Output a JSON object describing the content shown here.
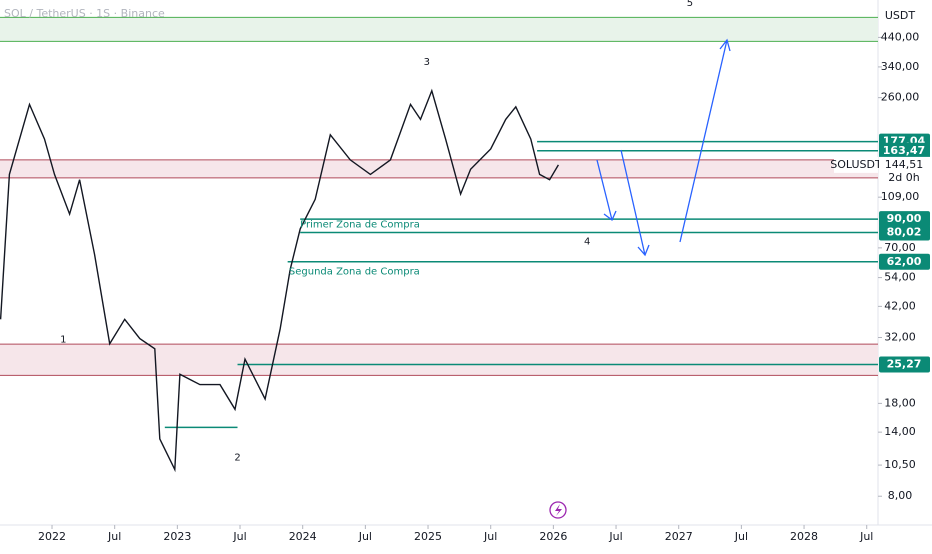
{
  "chart_data": {
    "type": "line",
    "title": "SOL / TetherUS · 1S · Binance",
    "currency": "USDT",
    "log_scale": true,
    "xlim": [
      2021.585,
      2028.59
    ],
    "ylim": [
      6.5,
      610
    ],
    "xticks": [
      {
        "value": 2022.0,
        "label": "2022"
      },
      {
        "value": 2022.5,
        "label": "Jul"
      },
      {
        "value": 2023.0,
        "label": "2023"
      },
      {
        "value": 2023.5,
        "label": "Jul"
      },
      {
        "value": 2024.0,
        "label": "2024"
      },
      {
        "value": 2024.5,
        "label": "Jul"
      },
      {
        "value": 2025.0,
        "label": "2025"
      },
      {
        "value": 2025.5,
        "label": "Jul"
      },
      {
        "value": 2026.0,
        "label": "2026"
      },
      {
        "value": 2026.5,
        "label": "Jul"
      },
      {
        "value": 2027.0,
        "label": "2027"
      },
      {
        "value": 2027.5,
        "label": "Jul"
      },
      {
        "value": 2028.0,
        "label": "2028"
      },
      {
        "value": 2028.5,
        "label": "Jul"
      }
    ],
    "yticks": [
      {
        "value": 8,
        "label": "8,00"
      },
      {
        "value": 10.5,
        "label": "10,50"
      },
      {
        "value": 14,
        "label": "14,00"
      },
      {
        "value": 18,
        "label": "18,00"
      },
      {
        "value": 32,
        "label": "32,00"
      },
      {
        "value": 42,
        "label": "42,00"
      },
      {
        "value": 54,
        "label": "54,00"
      },
      {
        "value": 70,
        "label": "70,00"
      },
      {
        "value": 109,
        "label": "109,00"
      },
      {
        "value": 260,
        "label": "260,00"
      },
      {
        "value": 340,
        "label": "340,00"
      },
      {
        "value": 440,
        "label": "440,00"
      }
    ],
    "series": [
      {
        "name": "SOLUSDT",
        "color": "#131722",
        "x": [
          2021.59,
          2021.66,
          2021.82,
          2021.94,
          2022.02,
          2022.14,
          2022.22,
          2022.34,
          2022.46,
          2022.58,
          2022.7,
          2022.82,
          2022.86,
          2022.98,
          2023.02,
          2023.18,
          2023.34,
          2023.46,
          2023.54,
          2023.7,
          2023.82,
          2023.9,
          2023.98,
          2024.1,
          2024.22,
          2024.38,
          2024.54,
          2024.7,
          2024.86,
          2024.94,
          2025.03,
          2025.14,
          2025.26,
          2025.34,
          2025.5,
          2025.62,
          2025.7,
          2025.82,
          2025.89,
          2025.97,
          2026.04
        ],
        "values": [
          37.5,
          133,
          245,
          181,
          133,
          94,
          127,
          66,
          30.3,
          37.5,
          31.7,
          29,
          13.2,
          10.1,
          23.2,
          21.2,
          21.2,
          17.1,
          26.5,
          18.7,
          34.4,
          58,
          82.6,
          107,
          188,
          151,
          133,
          151,
          245,
          215,
          276,
          181,
          112,
          139,
          166,
          215,
          240,
          181,
          133,
          127,
          144.51
        ]
      }
    ],
    "zones": [
      {
        "low": 425,
        "high": 524,
        "color": "#e8f3ea",
        "border": "#4caf50"
      },
      {
        "low": 129,
        "high": 151,
        "color": "#f6e6ea",
        "border": "#b04a5a"
      },
      {
        "low": 23,
        "high": 30.2,
        "color": "#f6e6ea",
        "border": "#b04a5a"
      }
    ],
    "levels": [
      {
        "value": 177.04,
        "label": "177,04",
        "x0": 2025.87
      },
      {
        "value": 163.47,
        "label": "163,47",
        "x0": 2025.87
      },
      {
        "value": 90,
        "label": "90,00",
        "x0": 2023.98
      },
      {
        "value": 80.02,
        "label": "80,02",
        "x0": 2023.98
      },
      {
        "value": 62,
        "label": "62,00",
        "x0": 2023.88
      },
      {
        "value": 25.27,
        "label": "25,27",
        "x0": 2023.48
      }
    ],
    "segments": [
      {
        "value": 14.6,
        "x0": 2022.9,
        "x1": 2023.48
      }
    ],
    "last": {
      "symbol": "SOLUSDT",
      "price": {
        "value": 144.51,
        "label": "144,51"
      },
      "countdown": "2d 0h"
    },
    "annotations": [
      {
        "text": "Primer Zona de Compra",
        "x": 2023.98,
        "y": 86
      },
      {
        "text": "Segunda Zona de Compra",
        "x": 2023.89,
        "y": 57
      },
      {
        "text": "1",
        "x": 2022.09,
        "y": 31.5
      },
      {
        "text": "2",
        "x": 2023.48,
        "y": 11.2
      },
      {
        "text": "3",
        "x": 2024.99,
        "y": 355
      },
      {
        "text": "4",
        "x": 2026.27,
        "y": 74
      },
      {
        "text": "5",
        "x": 2027.09,
        "y": 595
      }
    ]
  }
}
